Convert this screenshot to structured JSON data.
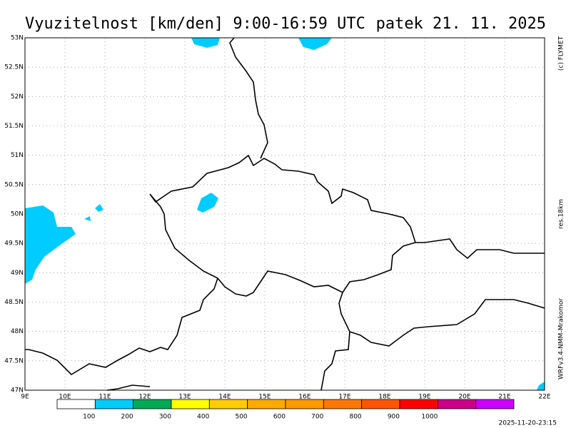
{
  "header": {
    "title": "Vyuzitelnost [km/den] 9:00-16:59 UTC",
    "date": "patek 21. 11. 2025"
  },
  "map": {
    "lat_labels": [
      "53N",
      "52.5N",
      "52N",
      "51.5N",
      "51N",
      "50.5N",
      "50N",
      "49.5N",
      "49N",
      "48.5N",
      "48N",
      "47.5N",
      "47N"
    ],
    "lon_labels": [
      "9E",
      "10E",
      "11E",
      "12E",
      "13E",
      "14E",
      "15E",
      "16E",
      "17E",
      "18E",
      "19E",
      "20E",
      "21E",
      "22E"
    ]
  },
  "legend": {
    "colors": [
      "#ffffff",
      "#00ccff",
      "#00aa55",
      "#ffff00",
      "#ffcc00",
      "#ffaa00",
      "#ff9900",
      "#ff7700",
      "#ff5500",
      "#ff0000",
      "#cc0088",
      "#cc00ff"
    ],
    "labels": [
      "100",
      "200",
      "300",
      "400",
      "500",
      "600",
      "700",
      "800",
      "900",
      "1000"
    ]
  },
  "side": {
    "copyright": "(c) FLYMET",
    "resolution": "res.18km",
    "model": "WRFv3.4-NMM-Mrakomor",
    "timestamp": "2025-11-20-23:15"
  }
}
